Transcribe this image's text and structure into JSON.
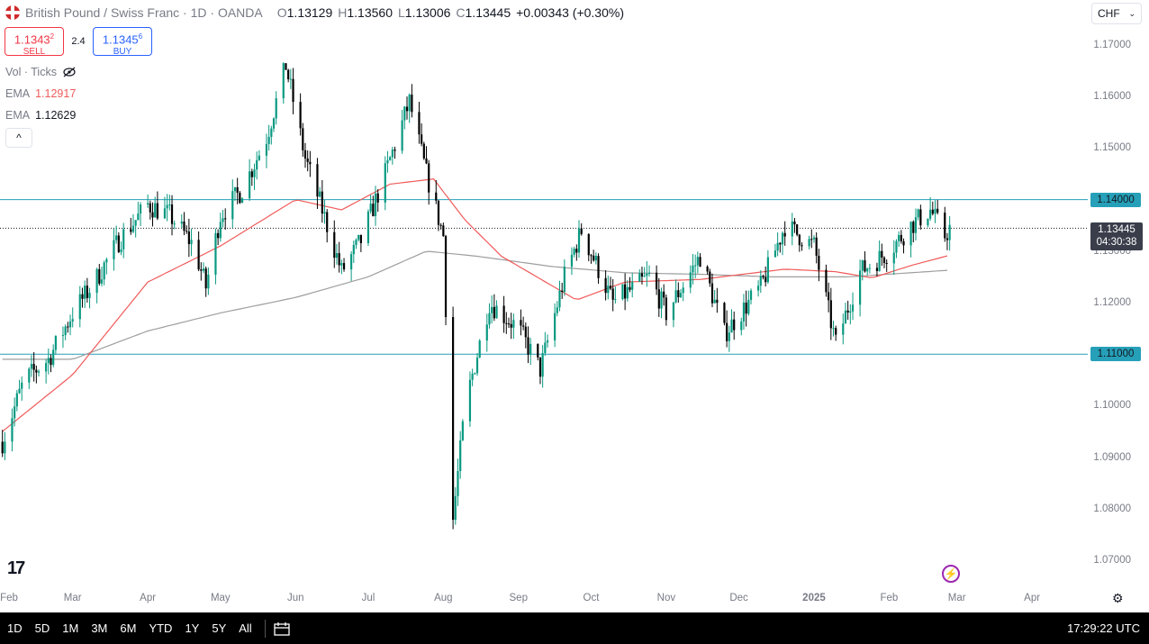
{
  "header": {
    "symbol": "British Pound / Swiss Franc · 1D · OANDA",
    "o_label": "O",
    "o": "1.13129",
    "h_label": "H",
    "h": "1.13560",
    "l_label": "L",
    "l": "1.13006",
    "c_label": "C",
    "c": "1.13445",
    "change": "+0.00343 (+0.30%)"
  },
  "trade": {
    "sell_price": "1.1343",
    "sell_sup": "2",
    "sell_label": "SELL",
    "spread": "2.4",
    "buy_price": "1.1345",
    "buy_sup": "6",
    "buy_label": "BUY"
  },
  "indicators": {
    "vol": "Vol · Ticks",
    "ema1_label": "EMA",
    "ema1_value": "1.12917",
    "ema2_label": "EMA",
    "ema2_value": "1.12629",
    "collapse": "^"
  },
  "currency": "CHF",
  "price_tag": {
    "price": "1.13445",
    "countdown": "04:30:38"
  },
  "hline_labels": [
    "1.14000",
    "1.11000"
  ],
  "bottom": {
    "ranges": [
      "1D",
      "5D",
      "1M",
      "3M",
      "6M",
      "YTD",
      "1Y",
      "5Y",
      "All"
    ],
    "clock": "17:29:22 UTC"
  },
  "colors": {
    "up": "#089981",
    "down": "#000000",
    "ema_fast": "#f05a5a",
    "ema_slow": "#9e9e9e",
    "hline": "#26a0b8"
  },
  "chart_data": {
    "type": "candlestick",
    "title": "British Pound / Swiss Franc · 1D · OANDA",
    "y_ticks": [
      "1.17000",
      "1.16000",
      "1.15000",
      "1.14000",
      "1.13000",
      "1.12000",
      "1.11000",
      "1.10000",
      "1.09000",
      "1.08000",
      "1.07000"
    ],
    "ylim": [
      1.0655,
      1.1755
    ],
    "x_ticks": [
      "Feb",
      "Mar",
      "Apr",
      "May",
      "Jun",
      "Jul",
      "Aug",
      "Sep",
      "Oct",
      "Nov",
      "Dec",
      "2025",
      "Feb",
      "Mar",
      "Apr"
    ],
    "xlim": [
      "2024-01-31",
      "2025-04-24"
    ],
    "horizontal_levels": [
      1.14,
      1.11
    ],
    "last_close": 1.13445,
    "close_path": [
      [
        "2024-02-01",
        1.093
      ],
      [
        "2024-02-10",
        1.105
      ],
      [
        "2024-02-20",
        1.109
      ],
      [
        "2024-03-01",
        1.118
      ],
      [
        "2024-03-10",
        1.124
      ],
      [
        "2024-03-20",
        1.132
      ],
      [
        "2024-04-01",
        1.139
      ],
      [
        "2024-04-10",
        1.137
      ],
      [
        "2024-04-20",
        1.131
      ],
      [
        "2024-04-25",
        1.123
      ],
      [
        "2024-05-01",
        1.137
      ],
      [
        "2024-05-10",
        1.142
      ],
      [
        "2024-05-20",
        1.152
      ],
      [
        "2024-05-28",
        1.166
      ],
      [
        "2024-06-05",
        1.148
      ],
      [
        "2024-06-12",
        1.138
      ],
      [
        "2024-06-20",
        1.126
      ],
      [
        "2024-06-28",
        1.132
      ],
      [
        "2024-07-08",
        1.145
      ],
      [
        "2024-07-18",
        1.159
      ],
      [
        "2024-07-25",
        1.145
      ],
      [
        "2024-08-01",
        1.133
      ],
      [
        "2024-08-05",
        1.078
      ],
      [
        "2024-08-10",
        1.1
      ],
      [
        "2024-08-20",
        1.12
      ],
      [
        "2024-09-01",
        1.115
      ],
      [
        "2024-09-10",
        1.107
      ],
      [
        "2024-09-20",
        1.125
      ],
      [
        "2024-09-27",
        1.134
      ],
      [
        "2024-10-10",
        1.12
      ],
      [
        "2024-10-25",
        1.125
      ],
      [
        "2024-11-01",
        1.118
      ],
      [
        "2024-11-15",
        1.129
      ],
      [
        "2024-11-25",
        1.114
      ],
      [
        "2024-12-10",
        1.123
      ],
      [
        "2024-12-20",
        1.135
      ],
      [
        "2025-01-01",
        1.131
      ],
      [
        "2025-01-10",
        1.112
      ],
      [
        "2025-01-20",
        1.126
      ],
      [
        "2025-02-01",
        1.13
      ],
      [
        "2025-02-10",
        1.135
      ],
      [
        "2025-02-18",
        1.138
      ],
      [
        "2025-02-24",
        1.133
      ],
      [
        "2025-02-26",
        1.13445
      ]
    ],
    "ema_fast_path": [
      [
        "2024-02-01",
        1.095
      ],
      [
        "2024-03-01",
        1.106
      ],
      [
        "2024-04-01",
        1.124
      ],
      [
        "2024-05-01",
        1.131
      ],
      [
        "2024-06-01",
        1.14
      ],
      [
        "2024-06-20",
        1.138
      ],
      [
        "2024-07-10",
        1.143
      ],
      [
        "2024-07-28",
        1.144
      ],
      [
        "2024-08-10",
        1.136
      ],
      [
        "2024-08-25",
        1.129
      ],
      [
        "2024-09-25",
        1.1205
      ],
      [
        "2024-10-15",
        1.124
      ],
      [
        "2024-11-15",
        1.1245
      ],
      [
        "2024-12-20",
        1.1265
      ],
      [
        "2025-01-10",
        1.126
      ],
      [
        "2025-01-25",
        1.1248
      ],
      [
        "2025-02-10",
        1.1272
      ],
      [
        "2025-02-26",
        1.1292
      ]
    ],
    "ema_slow_path": [
      [
        "2024-02-01",
        1.109
      ],
      [
        "2024-03-01",
        1.109
      ],
      [
        "2024-04-01",
        1.1145
      ],
      [
        "2024-05-01",
        1.118
      ],
      [
        "2024-06-01",
        1.121
      ],
      [
        "2024-07-01",
        1.125
      ],
      [
        "2024-07-25",
        1.13
      ],
      [
        "2024-08-15",
        1.129
      ],
      [
        "2024-09-15",
        1.127
      ],
      [
        "2024-10-15",
        1.1258
      ],
      [
        "2024-11-15",
        1.1255
      ],
      [
        "2024-12-15",
        1.125
      ],
      [
        "2025-01-15",
        1.125
      ],
      [
        "2025-02-26",
        1.1263
      ]
    ]
  }
}
